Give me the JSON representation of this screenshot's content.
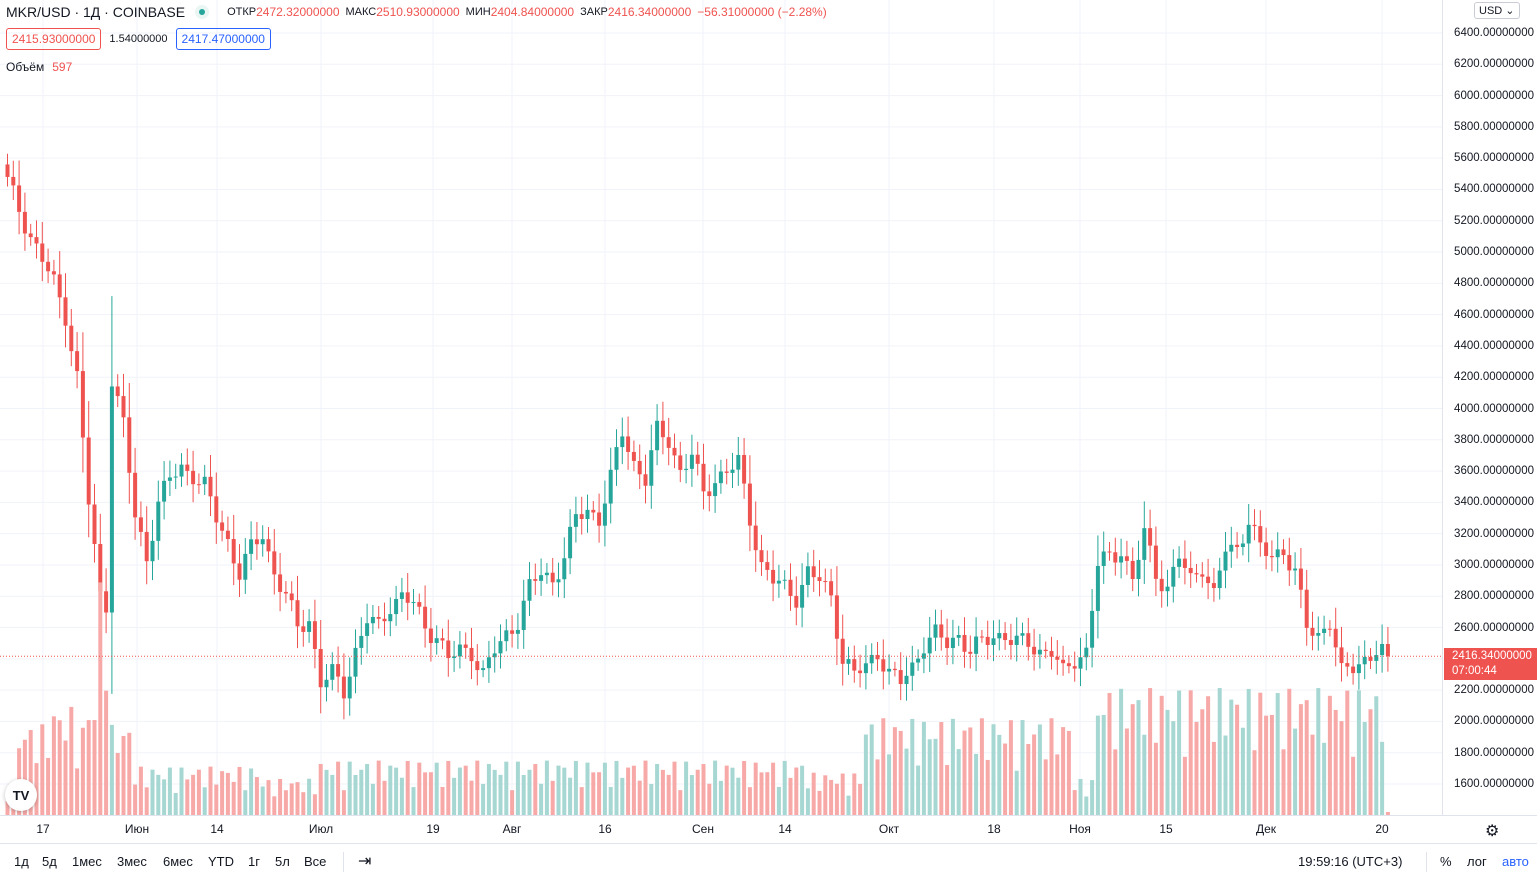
{
  "header": {
    "symbol": "MKR/USD · 1Д · COINBASE",
    "open_label": "ОТКР",
    "open": "2472.32000000",
    "high_label": "МАКС",
    "high": "2510.93000000",
    "low_label": "МИН",
    "low": "2404.84000000",
    "close_label": "ЗАКР",
    "close": "2416.34000000",
    "change": "−56.31000000 (−2.28%)",
    "bid": "2415.93000000",
    "spread": "1.54000000",
    "ask": "2417.47000000",
    "volume_label": "Объём",
    "volume_value": "597"
  },
  "price_axis": {
    "currency": "USD",
    "labels": [
      "6400.00000000",
      "6200.00000000",
      "6000.00000000",
      "5800.00000000",
      "5600.00000000",
      "5400.00000000",
      "5200.00000000",
      "5000.00000000",
      "4800.00000000",
      "4600.00000000",
      "4400.00000000",
      "4200.00000000",
      "4000.00000000",
      "3800.00000000",
      "3600.00000000",
      "3400.00000000",
      "3200.00000000",
      "3000.00000000",
      "2800.00000000",
      "2600.00000000",
      "2400.00000000",
      "2200.00000000",
      "2000.00000000",
      "1800.00000000",
      "1600.00000000"
    ],
    "last_price": "2416.34000000",
    "countdown": "07:00:44"
  },
  "time_axis": {
    "labels": [
      "17",
      "Июн",
      "14",
      "Июл",
      "19",
      "Авг",
      "16",
      "Сен",
      "14",
      "Окт",
      "18",
      "Ноя",
      "15",
      "Дек",
      "20"
    ]
  },
  "toolbar": {
    "ranges": [
      "1д",
      "5д",
      "1мес",
      "3мес",
      "6мес",
      "YTD",
      "1г",
      "5л",
      "Все"
    ],
    "clock": "19:59:16 (UTC+3)",
    "percent": "%",
    "log": "лог",
    "auto": "авто"
  },
  "logo_text": "TV",
  "colors": {
    "up": "#26a69a",
    "down": "#ef5350",
    "vol_up": "#a6d7d2",
    "vol_down": "#f7a9a7",
    "grid": "#f0f3fa"
  },
  "chart_data": {
    "type": "candlestick",
    "title": "MKR/USD · 1Д · COINBASE",
    "ylim": [
      1500,
      6600
    ],
    "anchors": [
      [
        0,
        5450
      ],
      [
        4,
        5100
      ],
      [
        8,
        4800
      ],
      [
        10,
        4600
      ],
      [
        12,
        4200
      ],
      [
        14,
        3400
      ],
      [
        16,
        2800
      ],
      [
        17,
        2750
      ],
      [
        18,
        4200
      ],
      [
        20,
        3900
      ],
      [
        22,
        3300
      ],
      [
        24,
        3050
      ],
      [
        26,
        3400
      ],
      [
        28,
        3550
      ],
      [
        30,
        3620
      ],
      [
        32,
        3580
      ],
      [
        34,
        3500
      ],
      [
        36,
        3300
      ],
      [
        38,
        3150
      ],
      [
        40,
        2950
      ],
      [
        42,
        3100
      ],
      [
        44,
        3200
      ],
      [
        46,
        2950
      ],
      [
        48,
        2800
      ],
      [
        50,
        2600
      ],
      [
        52,
        2650
      ],
      [
        54,
        2250
      ],
      [
        56,
        2300
      ],
      [
        58,
        2200
      ],
      [
        60,
        2450
      ],
      [
        62,
        2650
      ],
      [
        64,
        2600
      ],
      [
        66,
        2750
      ],
      [
        68,
        2800
      ],
      [
        70,
        2750
      ],
      [
        72,
        2600
      ],
      [
        74,
        2550
      ],
      [
        76,
        2400
      ],
      [
        78,
        2450
      ],
      [
        80,
        2450
      ],
      [
        82,
        2300
      ],
      [
        84,
        2450
      ],
      [
        86,
        2550
      ],
      [
        88,
        2650
      ],
      [
        90,
        2850
      ],
      [
        92,
        2950
      ],
      [
        94,
        2900
      ],
      [
        96,
        3050
      ],
      [
        98,
        3300
      ],
      [
        100,
        3350
      ],
      [
        102,
        3300
      ],
      [
        104,
        3550
      ],
      [
        106,
        3850
      ],
      [
        108,
        3650
      ],
      [
        110,
        3550
      ],
      [
        112,
        3850
      ],
      [
        114,
        3800
      ],
      [
        116,
        3600
      ],
      [
        118,
        3700
      ],
      [
        120,
        3450
      ],
      [
        122,
        3550
      ],
      [
        124,
        3600
      ],
      [
        126,
        3650
      ],
      [
        128,
        3300
      ],
      [
        130,
        3000
      ],
      [
        132,
        2900
      ],
      [
        134,
        2850
      ],
      [
        136,
        2800
      ],
      [
        138,
        2950
      ],
      [
        140,
        2900
      ],
      [
        142,
        2800
      ],
      [
        144,
        2400
      ],
      [
        146,
        2300
      ],
      [
        148,
        2350
      ],
      [
        150,
        2450
      ],
      [
        152,
        2300
      ],
      [
        154,
        2250
      ],
      [
        156,
        2350
      ],
      [
        158,
        2500
      ],
      [
        160,
        2550
      ],
      [
        162,
        2500
      ],
      [
        164,
        2550
      ],
      [
        166,
        2450
      ],
      [
        168,
        2500
      ],
      [
        170,
        2550
      ],
      [
        172,
        2550
      ],
      [
        174,
        2500
      ],
      [
        176,
        2500
      ],
      [
        178,
        2450
      ],
      [
        180,
        2450
      ],
      [
        182,
        2300
      ],
      [
        184,
        2400
      ],
      [
        186,
        2450
      ],
      [
        188,
        3000
      ],
      [
        190,
        3050
      ],
      [
        192,
        3100
      ],
      [
        194,
        2900
      ],
      [
        196,
        3200
      ],
      [
        198,
        2950
      ],
      [
        200,
        2850
      ],
      [
        202,
        3050
      ],
      [
        204,
        2900
      ],
      [
        206,
        3000
      ],
      [
        208,
        2800
      ],
      [
        210,
        3100
      ],
      [
        212,
        3100
      ],
      [
        214,
        3300
      ],
      [
        216,
        3100
      ],
      [
        218,
        3050
      ],
      [
        220,
        3100
      ],
      [
        222,
        2950
      ],
      [
        224,
        2600
      ],
      [
        226,
        2550
      ],
      [
        228,
        2650
      ],
      [
        230,
        2300
      ],
      [
        232,
        2350
      ],
      [
        234,
        2400
      ],
      [
        236,
        2450
      ],
      [
        238,
        2420
      ]
    ],
    "volume_levels": [
      {
        "day": 0,
        "volume": 50
      },
      {
        "day": 2,
        "volume": 150
      },
      {
        "day": 8,
        "volume": 180
      },
      {
        "day": 12,
        "volume": 150
      },
      {
        "day": 14,
        "volume": 200
      },
      {
        "day": 16,
        "volume": 400
      },
      {
        "day": 18,
        "volume": 150
      },
      {
        "day": 22,
        "volume": 80
      },
      {
        "day": 44,
        "volume": 60
      },
      {
        "day": 54,
        "volume": 90
      },
      {
        "day": 62,
        "volume": 90
      },
      {
        "day": 138,
        "volume": 70
      },
      {
        "day": 148,
        "volume": 160
      },
      {
        "day": 184,
        "volume": 60
      },
      {
        "day": 188,
        "volume": 210
      },
      {
        "day": 238,
        "volume": 5
      }
    ],
    "last": 2416.34
  }
}
